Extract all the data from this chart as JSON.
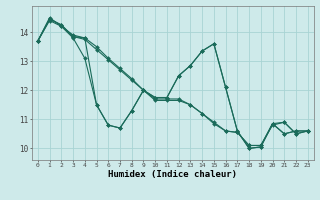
{
  "xlabel": "Humidex (Indice chaleur)",
  "background_color": "#ceeaea",
  "grid_color": "#a8d4d4",
  "line_color": "#1a6b5a",
  "xlim": [
    -0.5,
    23.5
  ],
  "ylim": [
    9.6,
    14.9
  ],
  "yticks": [
    10,
    11,
    12,
    13,
    14
  ],
  "xticks": [
    0,
    1,
    2,
    3,
    4,
    5,
    6,
    7,
    8,
    9,
    10,
    11,
    12,
    13,
    14,
    15,
    16,
    17,
    18,
    19,
    20,
    21,
    22,
    23
  ],
  "series": [
    [
      13.7,
      14.5,
      14.2,
      13.9,
      13.8,
      11.5,
      10.8,
      10.7,
      11.3,
      12.0,
      11.75,
      11.75,
      12.5,
      12.85,
      13.35,
      13.6,
      12.1,
      10.6,
      10.0,
      10.05,
      10.85,
      10.5,
      10.6,
      10.6
    ],
    [
      13.7,
      14.45,
      14.25,
      13.85,
      13.75,
      13.4,
      13.05,
      12.7,
      12.35,
      12.0,
      11.65,
      11.65,
      11.65,
      11.5,
      11.2,
      10.9,
      10.6,
      10.55,
      10.1,
      10.1,
      10.85,
      10.9,
      10.5,
      10.6
    ],
    [
      13.7,
      14.45,
      14.25,
      13.85,
      13.8,
      13.5,
      13.1,
      12.75,
      12.4,
      12.0,
      11.7,
      11.7,
      11.7,
      11.5,
      11.2,
      10.85,
      10.6,
      10.55,
      10.1,
      10.1,
      10.8,
      10.9,
      10.5,
      10.6
    ],
    [
      13.7,
      14.4,
      14.2,
      13.8,
      13.1,
      11.5,
      10.8,
      10.7,
      11.3,
      12.0,
      11.75,
      11.75,
      12.5,
      12.85,
      13.35,
      13.6,
      12.1,
      10.6,
      10.0,
      10.05,
      10.85,
      10.5,
      10.6,
      10.6
    ]
  ]
}
